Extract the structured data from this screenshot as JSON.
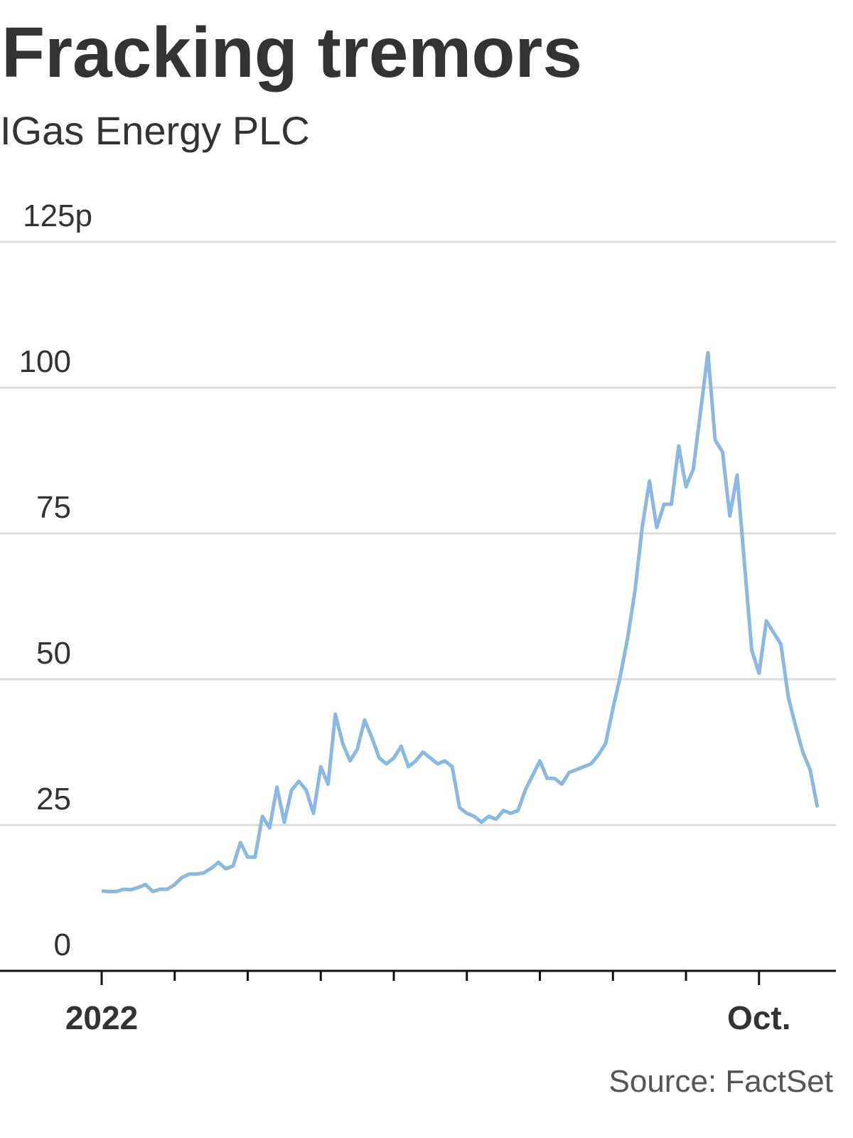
{
  "chart_data": {
    "type": "line",
    "title": "Fracking tremors",
    "subtitle": "IGas Energy PLC",
    "source": "Source: FactSet",
    "categories": [
      "2022",
      null,
      null,
      null,
      null,
      null,
      null,
      null,
      null,
      null,
      null,
      null,
      null,
      null,
      null,
      null,
      null,
      null,
      null,
      null,
      null,
      null,
      null,
      null,
      null,
      null,
      null,
      null,
      null,
      null,
      null,
      null,
      null,
      null,
      null,
      null,
      null,
      null,
      null,
      null,
      null,
      null,
      null,
      null,
      null,
      null,
      null,
      null,
      null,
      null,
      null,
      null,
      null,
      null,
      null,
      null,
      null,
      null,
      null,
      null,
      null,
      null,
      null,
      null,
      null,
      null,
      null,
      null,
      null,
      null,
      null,
      null,
      null,
      null,
      null,
      null,
      null,
      null,
      null,
      null,
      null,
      null,
      null,
      null,
      null,
      null,
      null,
      null,
      null,
      null,
      "Oct.",
      null,
      null,
      null,
      null,
      null,
      null,
      null,
      null
    ],
    "series": [
      {
        "color": "#8ab8e3",
        "values": [
          13.7,
          13.6,
          13.6,
          14.0,
          13.9,
          14.3,
          14.8,
          13.6,
          14.0,
          14.0,
          14.8,
          16.0,
          16.6,
          16.6,
          16.8,
          17.6,
          18.6,
          17.5,
          18.0,
          22.0,
          19.5,
          19.5,
          26.5,
          24.5,
          31.5,
          25.5,
          31,
          32.5,
          31,
          27,
          35,
          32,
          44,
          39,
          36,
          38,
          43,
          40,
          36.5,
          35.5,
          36.5,
          38.5,
          35,
          36,
          37.5,
          36.5,
          35.5,
          36,
          35,
          28,
          27,
          26.5,
          25.5,
          26.5,
          26,
          27.5,
          27,
          27.5,
          31,
          33.5,
          36,
          33,
          33,
          32,
          34,
          34.5,
          35,
          35.5,
          37,
          39,
          45,
          50.5,
          57,
          65,
          76,
          84,
          76,
          80,
          80,
          90,
          83,
          86,
          96,
          106,
          91,
          89,
          78,
          85,
          70,
          55,
          51,
          60,
          58,
          56,
          47,
          42,
          37.5,
          34.5,
          28
        ]
      }
    ],
    "ylim": [
      0,
      125
    ],
    "yticks": [
      0,
      25,
      50,
      75,
      100,
      {
        "value": 125,
        "label": "125p"
      }
    ],
    "grid": true
  }
}
